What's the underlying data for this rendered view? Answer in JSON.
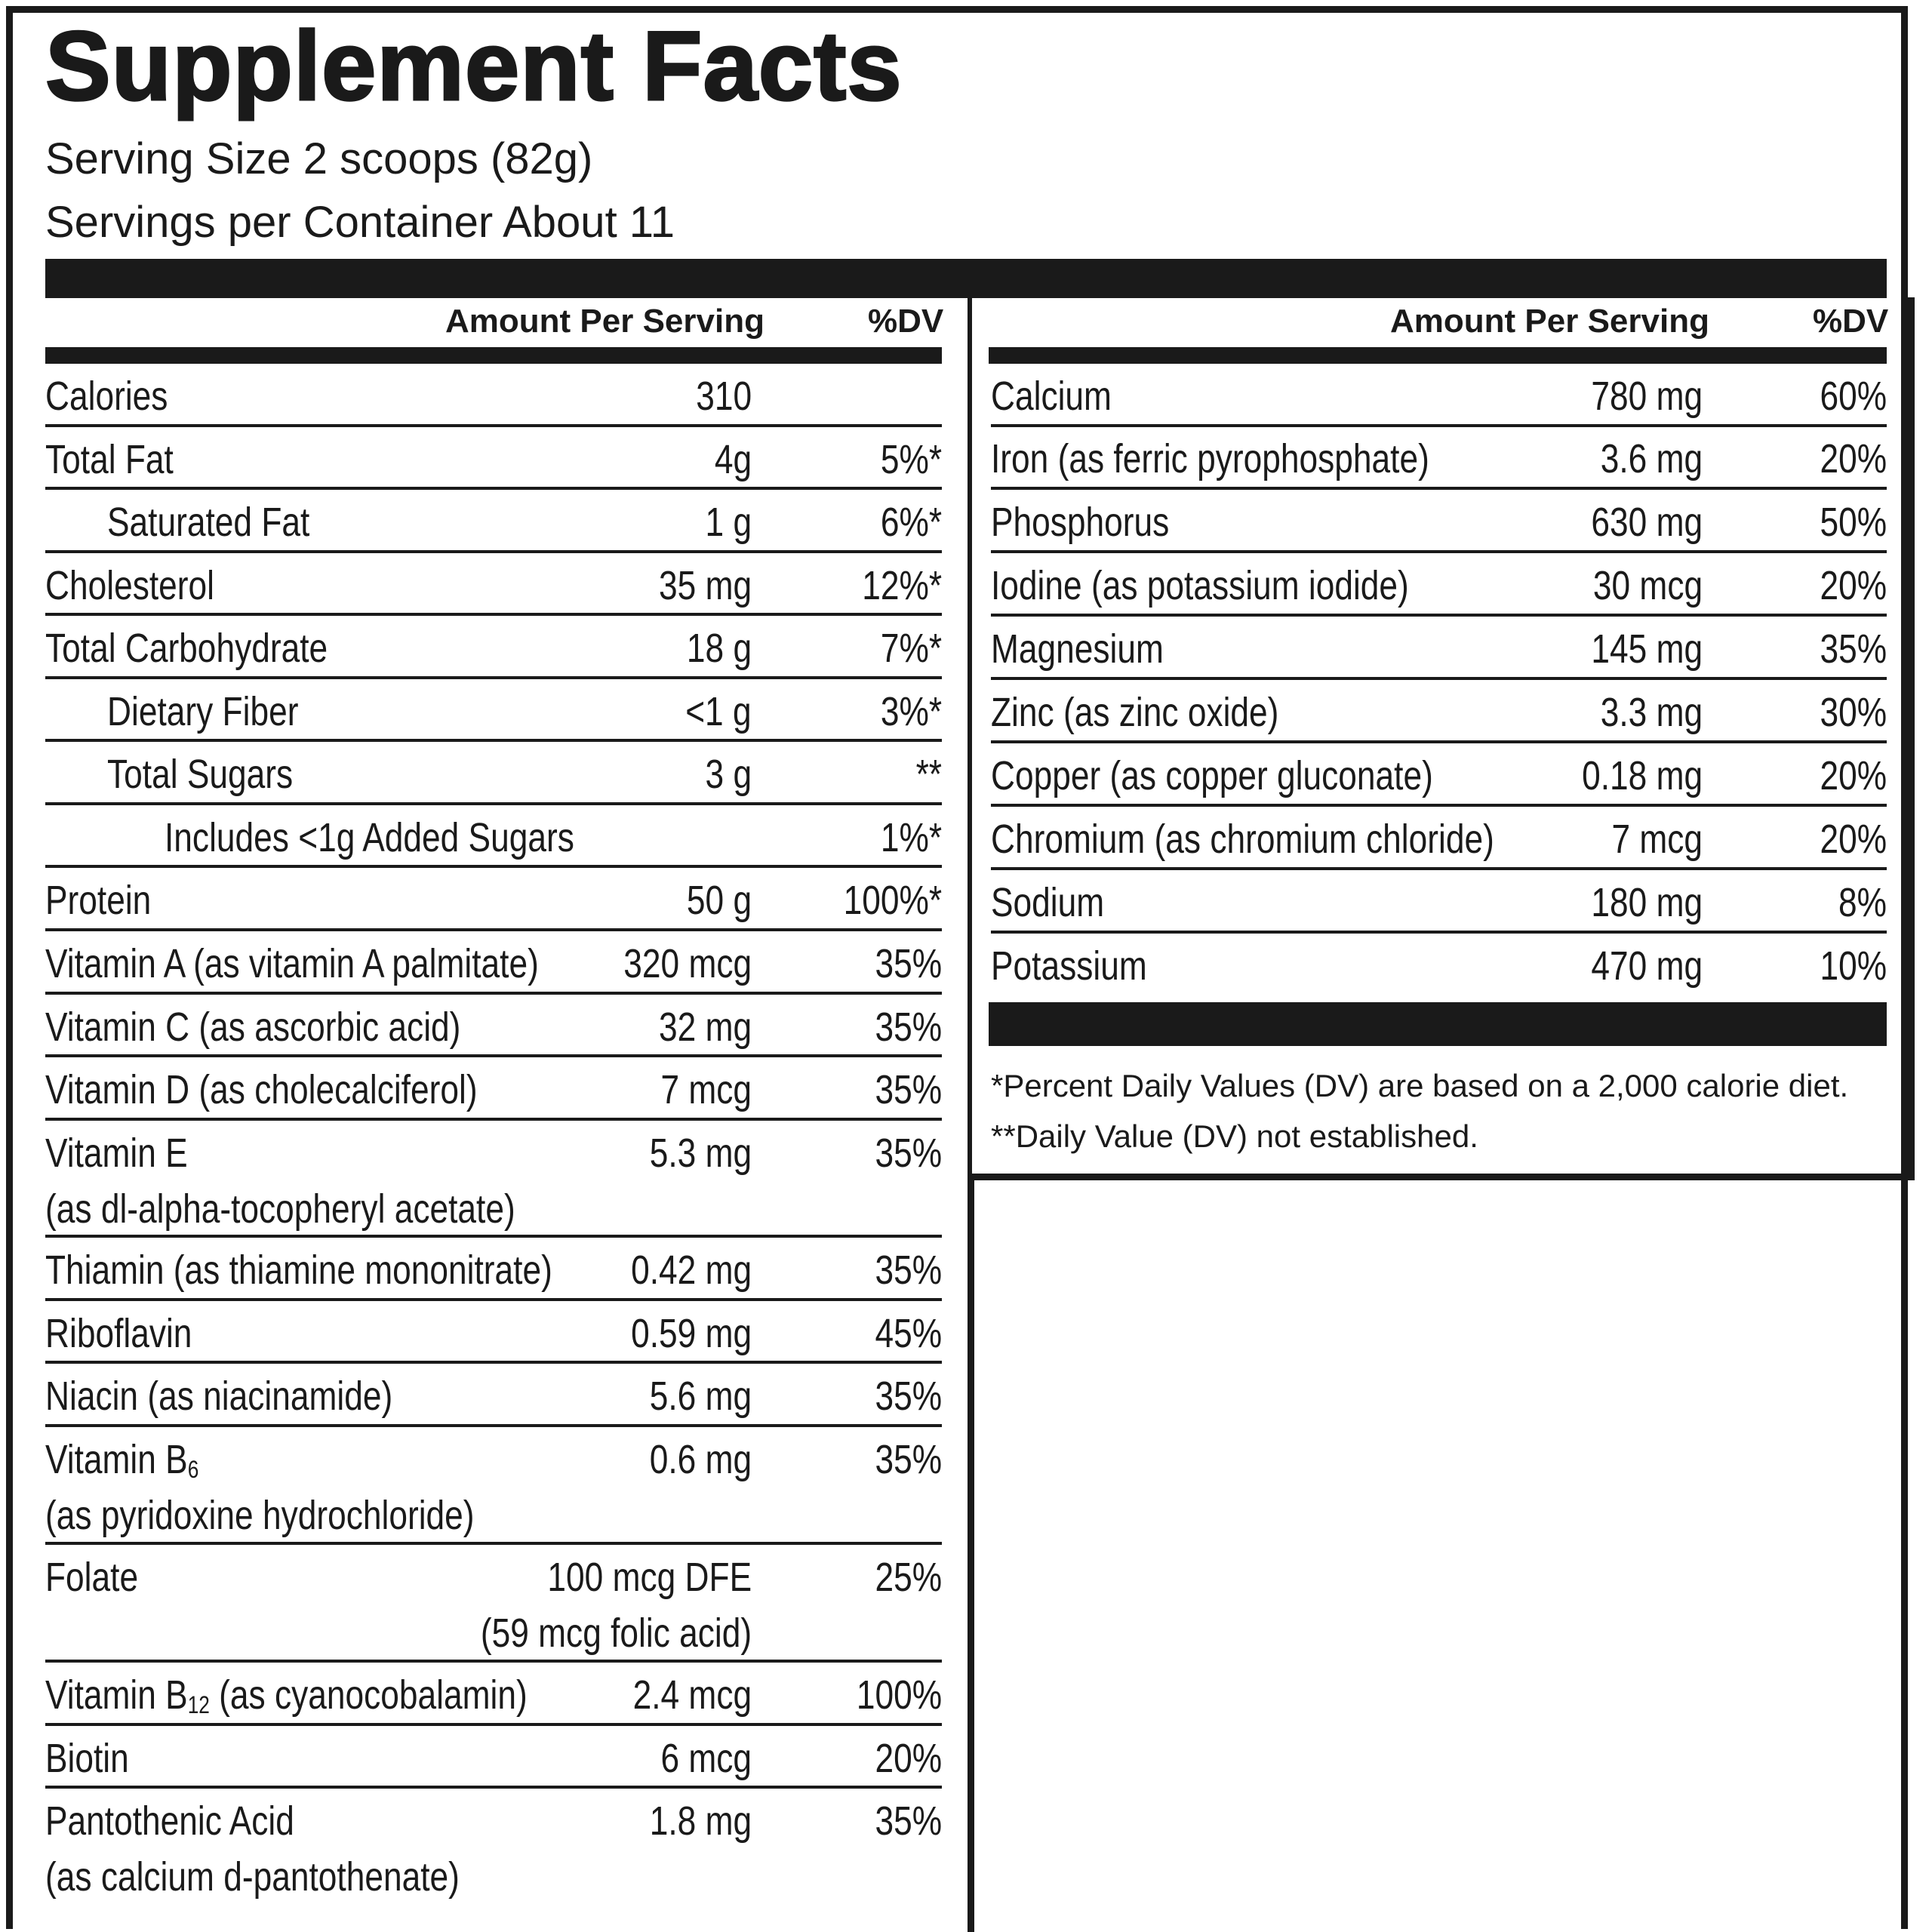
{
  "title": "Supplement Facts",
  "serving_size": "Serving Size 2 scoops (82g)",
  "servings_per_container": "Servings per Container About 11",
  "headers": {
    "amount": "Amount Per Serving",
    "dv": "%DV"
  },
  "left_rows": [
    {
      "name": "Calories",
      "amount": "310",
      "dv": ""
    },
    {
      "name": "Total Fat",
      "amount": "4g",
      "dv": "5%*"
    },
    {
      "name": "Saturated Fat",
      "amount": "1 g",
      "dv": "6%*",
      "indent": 1
    },
    {
      "name": "Cholesterol",
      "amount": "35 mg",
      "dv": "12%*"
    },
    {
      "name": "Total Carbohydrate",
      "amount": "18 g",
      "dv": "7%*"
    },
    {
      "name": "Dietary Fiber",
      "amount": "<1 g",
      "dv": "3%*",
      "indent": 1
    },
    {
      "name": "Total Sugars",
      "amount": "3 g",
      "dv": "**",
      "indent": 1
    },
    {
      "name": "Includes <1g Added Sugars",
      "amount": "",
      "dv": "1%*",
      "indent": 2
    },
    {
      "name": "Protein",
      "amount": "50 g",
      "dv": "100%*"
    },
    {
      "name": "Vitamin A (as vitamin A palmitate)",
      "amount": "320 mcg",
      "dv": "35%"
    },
    {
      "name": "Vitamin C (as ascorbic acid)",
      "amount": "32 mg",
      "dv": "35%"
    },
    {
      "name": "Vitamin D (as cholecalciferol)",
      "amount": "7 mcg",
      "dv": "35%"
    },
    {
      "name": "Vitamin E",
      "name2": "(as dl-alpha-tocopheryl acetate)",
      "amount": "5.3 mg",
      "dv": "35%"
    },
    {
      "name": "Thiamin (as thiamine mononitrate)",
      "amount": "0.42 mg",
      "dv": "35%"
    },
    {
      "name": "Riboflavin",
      "amount": "0.59 mg",
      "dv": "45%"
    },
    {
      "name": "Niacin (as niacinamide)",
      "amount": "5.6 mg",
      "dv": "35%"
    },
    {
      "name": "Vitamin B",
      "name_sub": "6",
      "name2": "(as pyridoxine hydrochloride)",
      "amount": "0.6 mg",
      "dv": "35%"
    },
    {
      "name": "Folate",
      "amount": "100 mcg DFE",
      "amount2": "(59 mcg folic acid)",
      "dv": "25%"
    },
    {
      "name": "Vitamin B",
      "name_sub": "12",
      "name_rest": " (as cyanocobalamin)",
      "amount": "2.4 mcg",
      "dv": "100%"
    },
    {
      "name": "Biotin",
      "amount": "6 mcg",
      "dv": "20%"
    },
    {
      "name": "Pantothenic Acid",
      "name2": "(as calcium d-pantothenate)",
      "amount": "1.8 mg",
      "dv": "35%"
    }
  ],
  "right_rows": [
    {
      "name": "Calcium",
      "amount": "780 mg",
      "dv": "60%"
    },
    {
      "name": "Iron (as ferric pyrophosphate)",
      "amount": "3.6 mg",
      "dv": "20%"
    },
    {
      "name": "Phosphorus",
      "amount": "630 mg",
      "dv": "50%"
    },
    {
      "name": "Iodine (as potassium iodide)",
      "amount": "30 mcg",
      "dv": "20%"
    },
    {
      "name": "Magnesium",
      "amount": "145 mg",
      "dv": "35%"
    },
    {
      "name": "Zinc (as zinc oxide)",
      "amount": "3.3 mg",
      "dv": "30%"
    },
    {
      "name": "Copper (as copper gluconate)",
      "amount": "0.18 mg",
      "dv": "20%"
    },
    {
      "name": "Chromium (as chromium chloride)",
      "amount": "7 mcg",
      "dv": "20%"
    },
    {
      "name": "Sodium",
      "amount": "180 mg",
      "dv": "8%"
    },
    {
      "name": "Potassium",
      "amount": "470 mg",
      "dv": "10%"
    }
  ],
  "footnotes": [
    "*Percent Daily Values (DV) are based on a 2,000 calorie diet.",
    "**Daily Value (DV) not established."
  ]
}
